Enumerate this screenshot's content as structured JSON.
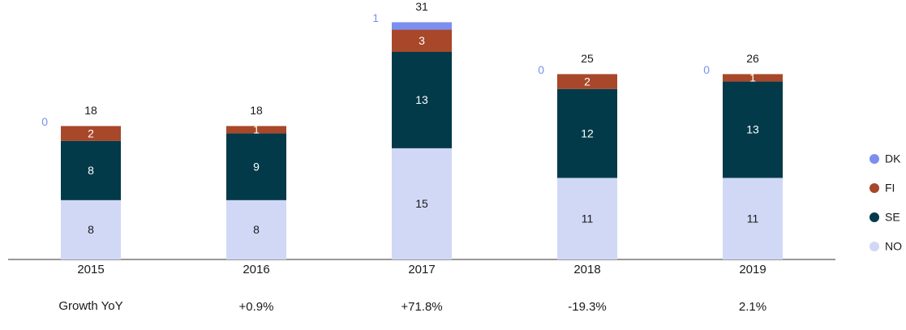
{
  "chart_data": {
    "type": "stacked_bar",
    "categories": [
      "2015",
      "2016",
      "2017",
      "2018",
      "2019"
    ],
    "series": [
      {
        "name": "NO",
        "color": "#d0d8f5",
        "values": [
          8,
          8,
          15,
          11,
          11
        ]
      },
      {
        "name": "SE",
        "color": "#023a4a",
        "values": [
          8,
          9,
          13,
          12,
          13
        ]
      },
      {
        "name": "FI",
        "color": "#a8472a",
        "values": [
          2,
          1,
          3,
          2,
          1
        ]
      },
      {
        "name": "DK",
        "color": "#7b8ff0",
        "values": [
          0,
          null,
          1,
          0,
          0
        ]
      }
    ],
    "totals": [
      18,
      18,
      31,
      25,
      26
    ],
    "ylim": [
      0,
      35
    ],
    "growth": {
      "label": "Growth YoY",
      "values": [
        "+0.9%",
        "+71.8%",
        "-19.3%",
        "2.1%"
      ]
    },
    "legend": "right"
  }
}
